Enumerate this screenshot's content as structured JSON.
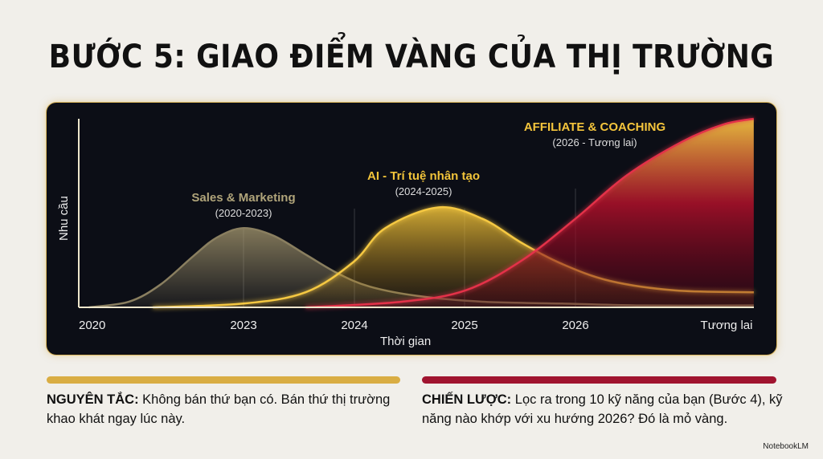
{
  "title": "BƯỚC 5: GIAO ĐIỂM VÀNG CỦA THỊ TRƯỜNG",
  "chart_data": {
    "type": "area",
    "xlabel": "Thời gian",
    "ylabel": "Nhu cầu",
    "x_ticks": [
      "2020",
      "2023",
      "2024",
      "2025",
      "2026",
      "Tương lai"
    ],
    "ylim": [
      0,
      100
    ],
    "grid": false,
    "series": [
      {
        "name": "Sales & Marketing",
        "period": "(2020-2023)",
        "color": "#a89a70",
        "points": [
          [
            -0.04,
            0
          ],
          [
            0.23,
            3
          ],
          [
            0.44,
            12
          ],
          [
            0.66,
            27
          ],
          [
            0.82,
            37
          ],
          [
            1,
            42
          ],
          [
            1.27,
            38
          ],
          [
            1.56,
            28
          ],
          [
            1.85,
            18
          ],
          [
            2.14,
            11
          ],
          [
            2.58,
            6
          ],
          [
            3.16,
            3
          ],
          [
            3.88,
            2
          ],
          [
            4.45,
            1
          ],
          [
            5.18,
            1
          ]
        ]
      },
      {
        "name": "AI - Trí tuệ nhân tạo",
        "period": "(2024-2025)",
        "color": "#f2c43a",
        "points": [
          [
            0.39,
            0
          ],
          [
            1,
            2
          ],
          [
            1.56,
            8
          ],
          [
            1.99,
            24
          ],
          [
            2.28,
            42
          ],
          [
            2.76,
            53
          ],
          [
            3.16,
            47
          ],
          [
            3.52,
            34
          ],
          [
            3.88,
            23
          ],
          [
            4.23,
            14
          ],
          [
            4.66,
            9
          ],
          [
            5.18,
            8
          ]
        ]
      },
      {
        "name": "AFFILIATE & COACHING",
        "period": "(2026 - Tương lai)",
        "color": "#e0344a",
        "points": [
          [
            1.56,
            0
          ],
          [
            2.43,
            3
          ],
          [
            3.01,
            9
          ],
          [
            3.52,
            25
          ],
          [
            4,
            47
          ],
          [
            4.34,
            70
          ],
          [
            4.71,
            88
          ],
          [
            4.98,
            97
          ],
          [
            5.18,
            100
          ]
        ]
      }
    ]
  },
  "notes": [
    {
      "label": "NGUYÊN TẮC:",
      "text": " Không bán thứ bạn có. Bán thứ thị trường khao khát ngay lúc này.",
      "color": "#d9ad43"
    },
    {
      "label": "CHIẾN LƯỢC:",
      "text": " Lọc ra trong 10 kỹ năng của bạn (Bước 4), kỹ năng nào khớp với xu hướng 2026? Đó là mỏ vàng.",
      "color": "#a0142f"
    }
  ],
  "brand": "NotebookLM"
}
